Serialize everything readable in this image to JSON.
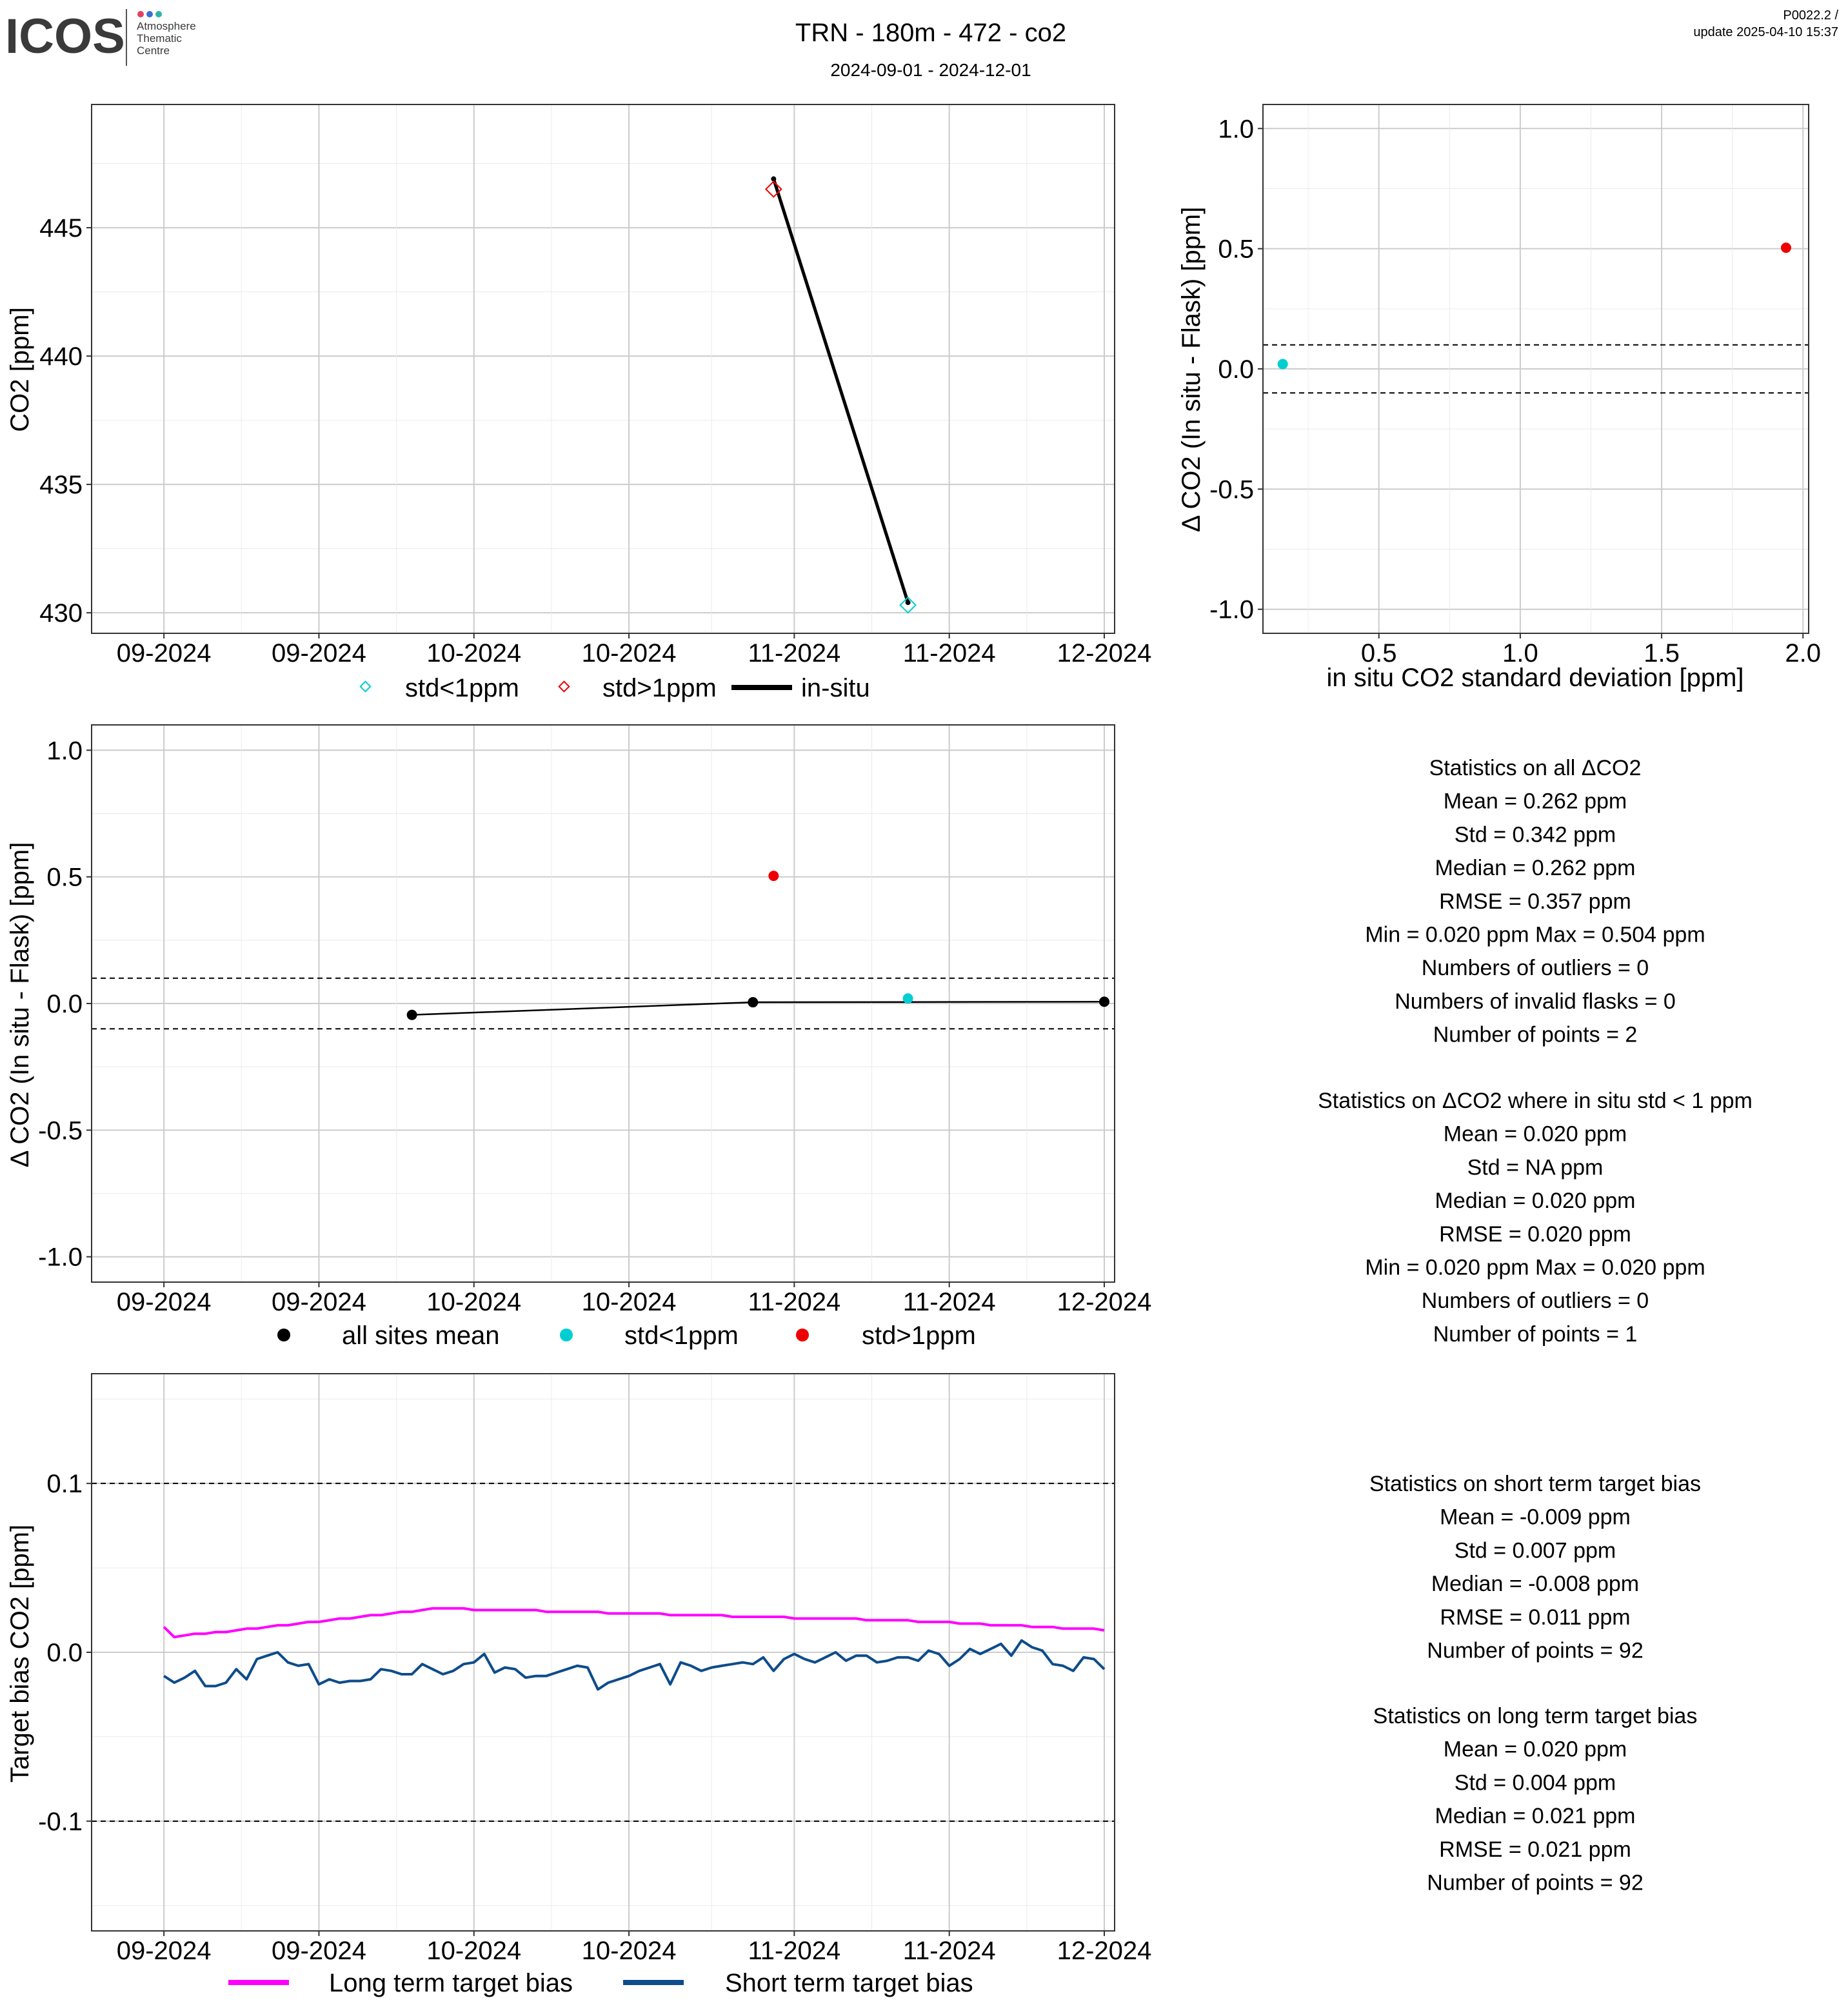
{
  "header": {
    "logo_word": "ICOS",
    "logo_sub": [
      "Atmosphere",
      "Thematic",
      "Centre"
    ],
    "logo_dot_colors": [
      "#e63e5c",
      "#3b6fd6",
      "#2bb5a8"
    ],
    "title": "TRN - 180m - 472 - co2",
    "subtitle": "2024-09-01 - 2024-12-01",
    "version": "P0022.2 /",
    "update": "update  2025-04-10 15:37"
  },
  "colors": {
    "cyan": "#00CED1",
    "red": "#EE0000",
    "black": "#000000",
    "magenta": "#FF00FF",
    "navy": "#0E4C8A",
    "grid_major": "#cccccc",
    "grid_minor": "#ebebeb"
  },
  "chart_data": [
    {
      "id": "timeseries",
      "type": "line",
      "ylabel": "CO2 [ppm]",
      "xlabel": "",
      "x_ticks": [
        "09-2024",
        "09-2024",
        "10-2024",
        "10-2024",
        "11-2024",
        "11-2024",
        "12-2024"
      ],
      "y_ticks": [
        "430",
        "435",
        "440",
        "445"
      ],
      "ylim": [
        429.2,
        449.8
      ],
      "grid": true,
      "legend": [
        "std<1ppm",
        "std>1ppm",
        "in-situ"
      ],
      "series": [
        {
          "name": "in-situ",
          "kind": "line",
          "x": [
            "2024-10-30",
            "2024-11-12"
          ],
          "y": [
            446.9,
            430.4
          ]
        },
        {
          "name": "std<1ppm",
          "kind": "diamond",
          "x": [
            "2024-11-12"
          ],
          "y": [
            430.3
          ]
        },
        {
          "name": "std>1ppm",
          "kind": "diamond",
          "x": [
            "2024-10-30"
          ],
          "y": [
            446.5
          ]
        }
      ]
    },
    {
      "id": "delta_vs_std",
      "type": "scatter",
      "xlabel": "in situ CO2 standard deviation [ppm]",
      "ylabel": "Δ CO2 (In situ - Flask) [ppm]",
      "x_ticks": [
        "0.5",
        "1.0",
        "1.5",
        "2.0"
      ],
      "y_ticks": [
        "-1.0",
        "-0.5",
        "0.0",
        "0.5",
        "1.0"
      ],
      "xlim": [
        0.09,
        2.02
      ],
      "ylim": [
        -1.1,
        1.1
      ],
      "hlines": [
        0.1,
        -0.1
      ],
      "grid": true,
      "points": [
        {
          "x": 0.16,
          "y": 0.02,
          "group": "std<1ppm"
        },
        {
          "x": 1.94,
          "y": 0.504,
          "group": "std>1ppm"
        }
      ]
    },
    {
      "id": "delta_timeseries",
      "type": "scatter",
      "ylabel": "Δ CO2 (In situ - Flask) [ppm]",
      "xlabel": "",
      "x_ticks": [
        "09-2024",
        "09-2024",
        "10-2024",
        "10-2024",
        "11-2024",
        "11-2024",
        "12-2024"
      ],
      "y_ticks": [
        "-1.0",
        "-0.5",
        "0.0",
        "0.5",
        "1.0"
      ],
      "ylim": [
        -1.1,
        1.1
      ],
      "hlines": [
        0.1,
        -0.1
      ],
      "grid": true,
      "legend": [
        "all sites mean",
        "std<1ppm",
        "std>1ppm"
      ],
      "series": [
        {
          "name": "all sites mean",
          "kind": "line-points",
          "x": [
            "2024-09-25",
            "2024-10-28",
            "2024-12-01"
          ],
          "y": [
            -0.045,
            0.005,
            0.007
          ]
        },
        {
          "name": "std<1ppm",
          "kind": "points",
          "x": [
            "2024-11-12"
          ],
          "y": [
            0.02
          ]
        },
        {
          "name": "std>1ppm",
          "kind": "points",
          "x": [
            "2024-10-30"
          ],
          "y": [
            0.504
          ]
        }
      ]
    },
    {
      "id": "target_bias",
      "type": "line",
      "ylabel": "Target bias CO2 [ppm]",
      "xlabel": "",
      "x_ticks": [
        "09-2024",
        "09-2024",
        "10-2024",
        "10-2024",
        "11-2024",
        "11-2024",
        "12-2024"
      ],
      "y_ticks": [
        "-0.1",
        "0.0",
        "0.1"
      ],
      "ylim": [
        -0.165,
        0.165
      ],
      "hlines": [
        0.1,
        -0.1
      ],
      "grid": true,
      "legend": [
        "Long term target bias",
        "Short term target bias"
      ],
      "x_start": "2024-09-01",
      "x_step_days": 1,
      "series": [
        {
          "name": "Long term target bias",
          "values": [
            0.015,
            0.009,
            0.01,
            0.011,
            0.011,
            0.012,
            0.012,
            0.013,
            0.014,
            0.014,
            0.015,
            0.016,
            0.016,
            0.017,
            0.018,
            0.018,
            0.019,
            0.02,
            0.02,
            0.021,
            0.022,
            0.022,
            0.023,
            0.024,
            0.024,
            0.025,
            0.026,
            0.026,
            0.026,
            0.026,
            0.025,
            0.025,
            0.025,
            0.025,
            0.025,
            0.025,
            0.025,
            0.024,
            0.024,
            0.024,
            0.024,
            0.024,
            0.024,
            0.023,
            0.023,
            0.023,
            0.023,
            0.023,
            0.023,
            0.022,
            0.022,
            0.022,
            0.022,
            0.022,
            0.022,
            0.021,
            0.021,
            0.021,
            0.021,
            0.021,
            0.021,
            0.02,
            0.02,
            0.02,
            0.02,
            0.02,
            0.02,
            0.02,
            0.019,
            0.019,
            0.019,
            0.019,
            0.019,
            0.018,
            0.018,
            0.018,
            0.018,
            0.017,
            0.017,
            0.017,
            0.016,
            0.016,
            0.016,
            0.016,
            0.015,
            0.015,
            0.015,
            0.014,
            0.014,
            0.014,
            0.014,
            0.013
          ]
        },
        {
          "name": "Short term target bias",
          "values": [
            -0.014,
            -0.018,
            -0.015,
            -0.011,
            -0.02,
            -0.02,
            -0.018,
            -0.01,
            -0.016,
            -0.004,
            -0.002,
            0.0,
            -0.006,
            -0.008,
            -0.007,
            -0.019,
            -0.016,
            -0.018,
            -0.017,
            -0.017,
            -0.016,
            -0.01,
            -0.011,
            -0.013,
            -0.013,
            -0.007,
            -0.01,
            -0.013,
            -0.011,
            -0.007,
            -0.006,
            -0.001,
            -0.012,
            -0.009,
            -0.01,
            -0.015,
            -0.014,
            -0.014,
            -0.012,
            -0.01,
            -0.008,
            -0.009,
            -0.022,
            -0.018,
            -0.016,
            -0.014,
            -0.011,
            -0.009,
            -0.007,
            -0.019,
            -0.006,
            -0.008,
            -0.011,
            -0.009,
            -0.008,
            -0.007,
            -0.006,
            -0.007,
            -0.003,
            -0.011,
            -0.004,
            -0.001,
            -0.004,
            -0.006,
            -0.003,
            0.0,
            -0.005,
            -0.002,
            -0.002,
            -0.006,
            -0.005,
            -0.003,
            -0.003,
            -0.005,
            0.001,
            -0.001,
            -0.008,
            -0.004,
            0.002,
            -0.001,
            0.002,
            0.005,
            -0.002,
            0.007,
            0.003,
            0.001,
            -0.007,
            -0.008,
            -0.011,
            -0.003,
            -0.004,
            -0.01
          ]
        }
      ]
    }
  ],
  "stats": [
    {
      "id": "stats_all",
      "lines": [
        "Statistics on all ΔCO2",
        "Mean =  0.262 ppm",
        "Std =  0.342 ppm",
        "Median =  0.262 ppm",
        "RMSE =  0.357 ppm",
        "Min =  0.020 ppm Max =  0.504 ppm",
        "Numbers of outliers =  0",
        "Numbers of invalid flasks =  0",
        "Number of points =  2"
      ]
    },
    {
      "id": "stats_std1",
      "lines": [
        "Statistics on ΔCO2 where in situ std < 1 ppm",
        "Mean =  0.020 ppm",
        "Std =  NA ppm",
        "Median =  0.020 ppm",
        "RMSE =  0.020 ppm",
        "Min =  0.020 ppm Max =  0.020 ppm",
        "Numbers of outliers =  0",
        "Number of points =  1"
      ]
    },
    {
      "id": "stats_short",
      "lines": [
        "Statistics on short term target bias",
        "Mean =  -0.009 ppm",
        "Std =  0.007 ppm",
        "Median =  -0.008 ppm",
        "RMSE =  0.011 ppm",
        "Number of points =  92"
      ]
    },
    {
      "id": "stats_long",
      "lines": [
        "Statistics on long term target bias",
        "Mean =  0.020 ppm",
        "Std =  0.004 ppm",
        "Median =  0.021 ppm",
        "RMSE =  0.021 ppm",
        "Number of points =  92"
      ]
    }
  ]
}
